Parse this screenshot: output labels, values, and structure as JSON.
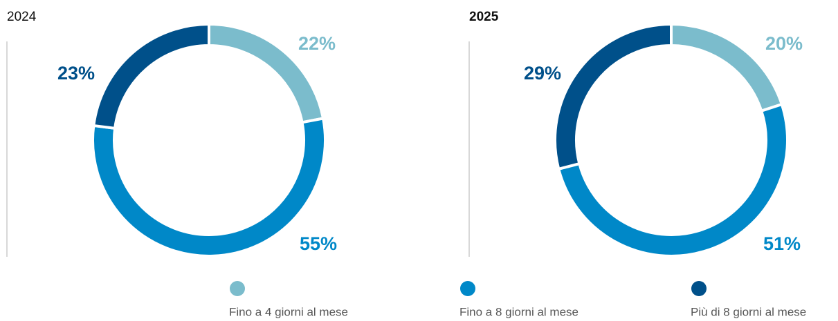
{
  "chart_data": [
    {
      "type": "pie",
      "title": "2024",
      "donut": true,
      "values": [
        22,
        55,
        23
      ],
      "value_labels": [
        "22%",
        "55%",
        "23%"
      ]
    },
    {
      "type": "pie",
      "title": "2025",
      "donut": true,
      "values": [
        20,
        51,
        29
      ],
      "value_labels": [
        "20%",
        "51%",
        "29%"
      ]
    }
  ],
  "legend": {
    "categories": [
      "Fino a 4 giorni al mese",
      "Fino a 8 giorni al mese",
      "Più di 8 giorni al mese"
    ],
    "colors": [
      "#7bbccc",
      "#0088c8",
      "#00508a"
    ]
  }
}
